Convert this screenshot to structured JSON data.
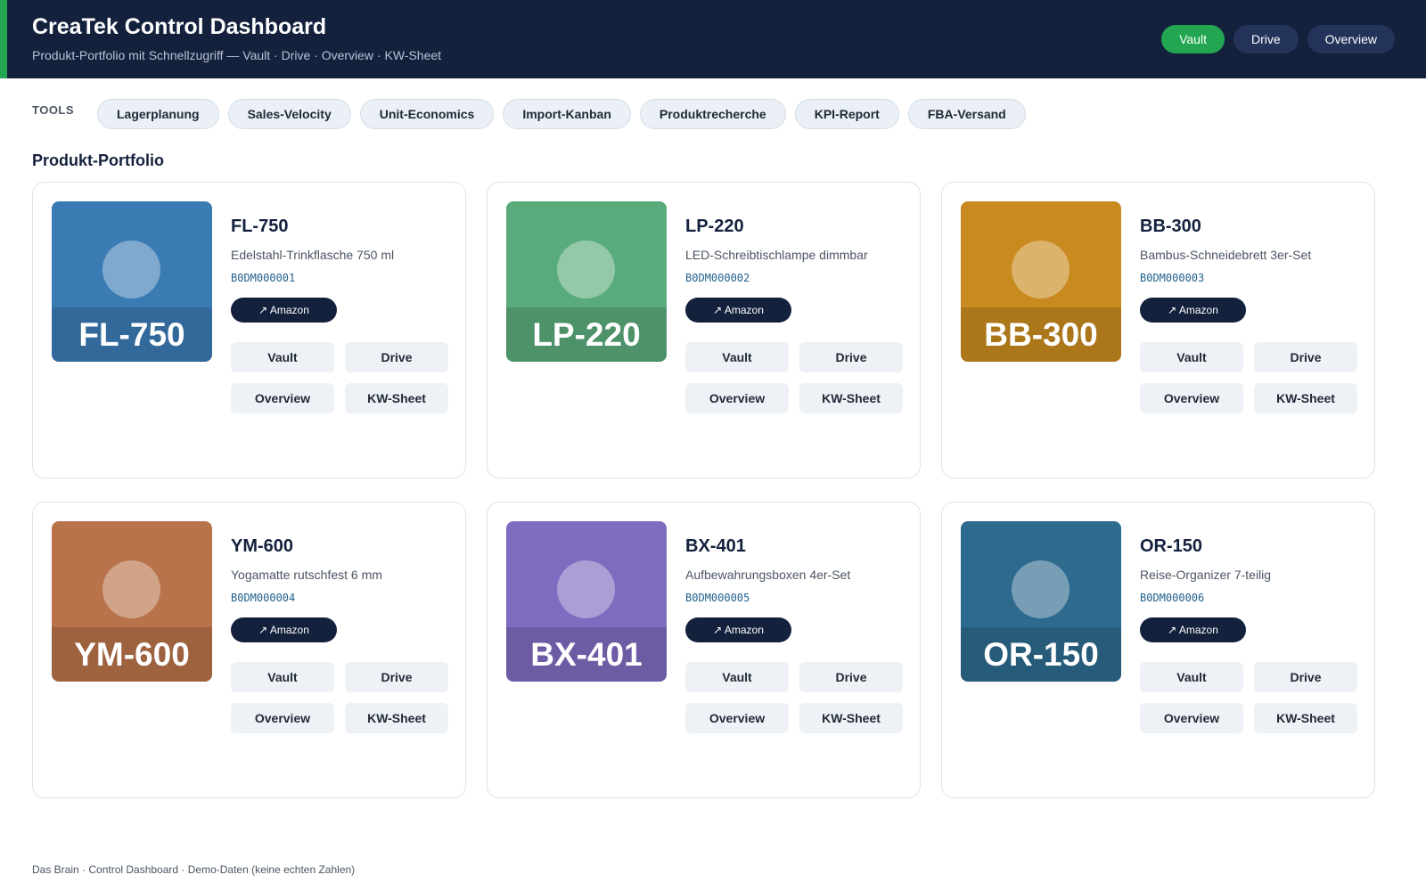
{
  "header": {
    "title": "CreaTek Control Dashboard",
    "subtitle": "Produkt-Portfolio mit Schnellzugriff — Vault · Drive · Overview · KW-Sheet",
    "nav": [
      {
        "label": "Vault",
        "active": true
      },
      {
        "label": "Drive",
        "active": false
      },
      {
        "label": "Overview",
        "active": false
      }
    ],
    "accent_color": "#22a652",
    "bg_color": "#14213d"
  },
  "tools": {
    "label": "TOOLS",
    "items": [
      "Lagerplanung",
      "Sales-Velocity",
      "Unit-Economics",
      "Import-Kanban",
      "Produktrecherche",
      "KPI-Report",
      "FBA-Versand"
    ]
  },
  "portfolio": {
    "title": "Produkt-Portfolio",
    "amazon_label": "↗ Amazon",
    "actions": [
      "Vault",
      "Drive",
      "Overview",
      "KW-Sheet"
    ],
    "products": [
      {
        "sku": "FL-750",
        "name": "Edelstahl-Trinkflasche 750 ml",
        "asin": "B0DM000001",
        "color": "#3b7bb4"
      },
      {
        "sku": "LP-220",
        "name": "LED-Schreibtischlampe dimmbar",
        "asin": "B0DM000002",
        "color": "#5aab7b"
      },
      {
        "sku": "BB-300",
        "name": "Bambus-Schneidebrett 3er-Set",
        "asin": "B0DM000003",
        "color": "#c98a1f"
      },
      {
        "sku": "YM-600",
        "name": "Yogamatte rutschfest 6 mm",
        "asin": "B0DM000004",
        "color": "#b8734a"
      },
      {
        "sku": "BX-401",
        "name": "Aufbewahrungsboxen 4er-Set",
        "asin": "B0DM000005",
        "color": "#7f6bbf"
      },
      {
        "sku": "OR-150",
        "name": "Reise-Organizer 7-teilig",
        "asin": "B0DM000006",
        "color": "#2e6a8e"
      }
    ]
  },
  "footer": {
    "text": "Das Brain · Control Dashboard · Demo-Daten (keine echten Zahlen)"
  }
}
